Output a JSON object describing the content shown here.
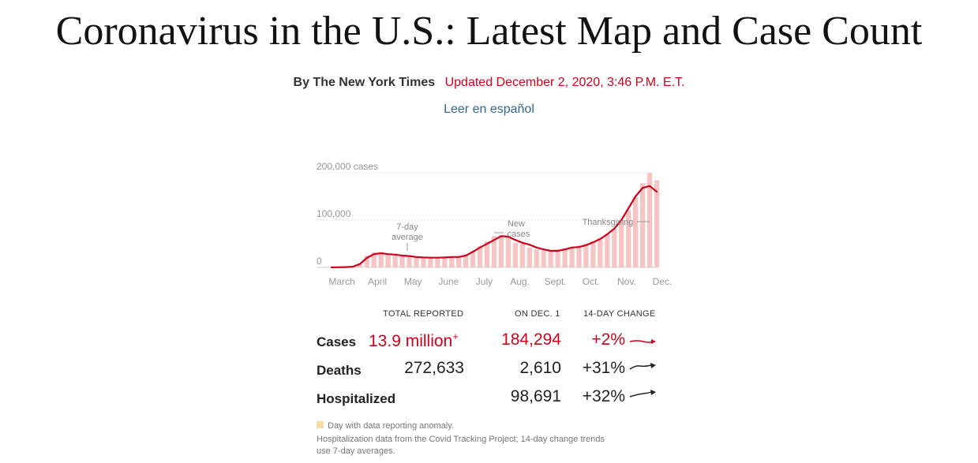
{
  "header": {
    "title": "Coronavirus in the U.S.: Latest Map and Case Count",
    "byline": "By The New York Times",
    "updated": "Updated December 2, 2020, 3:46 P.M. E.T.",
    "language_link": "Leer en español"
  },
  "chart_data": {
    "type": "bar",
    "title": "",
    "xlabel": "",
    "ylabel": "New cases",
    "ylim": [
      0,
      200000
    ],
    "y_ticks": [
      {
        "value": 0,
        "label": "0"
      },
      {
        "value": 100000,
        "label": "100,000"
      },
      {
        "value": 200000,
        "label": "200,000 cases"
      }
    ],
    "x_ticks": [
      "March",
      "April",
      "May",
      "June",
      "July",
      "Aug.",
      "Sept.",
      "Oct.",
      "Nov.",
      "Dec."
    ],
    "series": [
      {
        "name": "New cases",
        "style": "bars",
        "x_range": [
          "March 1",
          "Dec. 1"
        ],
        "values": [
          0,
          500,
          1000,
          2000,
          9000,
          25000,
          32000,
          30000,
          27000,
          29000,
          25000,
          23000,
          22000,
          21000,
          20000,
          21000,
          22000,
          23000,
          21000,
          25000,
          35000,
          45000,
          55000,
          66000,
          68000,
          63000,
          52000,
          50000,
          42000,
          38000,
          36000,
          33000,
          38000,
          40000,
          43000,
          46000,
          50000,
          55000,
          62000,
          71000,
          82000,
          100000,
          120000,
          148000,
          178000,
          200000,
          184294
        ]
      },
      {
        "name": "7-day average",
        "style": "line",
        "x_range": [
          "March 1",
          "Dec. 1"
        ],
        "values": [
          0,
          300,
          600,
          1500,
          7000,
          20000,
          28000,
          30000,
          28000,
          27000,
          25000,
          24000,
          22000,
          21000,
          20500,
          20500,
          21000,
          22000,
          22000,
          25000,
          33000,
          42000,
          50000,
          58000,
          66000,
          65000,
          58000,
          52000,
          48000,
          42000,
          38000,
          35000,
          35000,
          38000,
          42000,
          43000,
          47000,
          53000,
          60000,
          70000,
          82000,
          100000,
          125000,
          150000,
          168000,
          172000,
          160000
        ]
      }
    ],
    "annotations": [
      {
        "label": "7-day",
        "x": "May 1",
        "value": 28000
      },
      {
        "label": "average",
        "x": "May 1",
        "value": 28000
      },
      {
        "label": "New",
        "x": "July 25",
        "value": 70000
      },
      {
        "label": "cases",
        "x": "July 25",
        "value": 70000
      },
      {
        "label": "Thanksgiving",
        "x": "Nov. 26",
        "value": 100000
      }
    ]
  },
  "stats": {
    "col_total": "TOTAL REPORTED",
    "col_day": "ON DEC. 1",
    "col_change": "14-DAY CHANGE",
    "rows": [
      {
        "label": "Cases",
        "total": "13.9 million",
        "total_suffix": "+",
        "day": "184,294",
        "change": "+2%"
      },
      {
        "label": "Deaths",
        "total": "272,633",
        "day": "2,610",
        "change": "+31%"
      },
      {
        "label": "Hospitalized",
        "total": "",
        "day": "98,691",
        "change": "+32%"
      }
    ]
  },
  "notes": {
    "anomaly": "Day with data reporting anomaly.",
    "hospitalization_line1": "Hospitalization data from the Covid Tracking Project; 14-day change trends",
    "hospitalization_line2": "use 7-day averages."
  },
  "colors": {
    "accent_red": "#d0021b",
    "bar_pink": "#f7c4c4",
    "anomaly": "#f9dca6",
    "link_blue": "#326891"
  }
}
